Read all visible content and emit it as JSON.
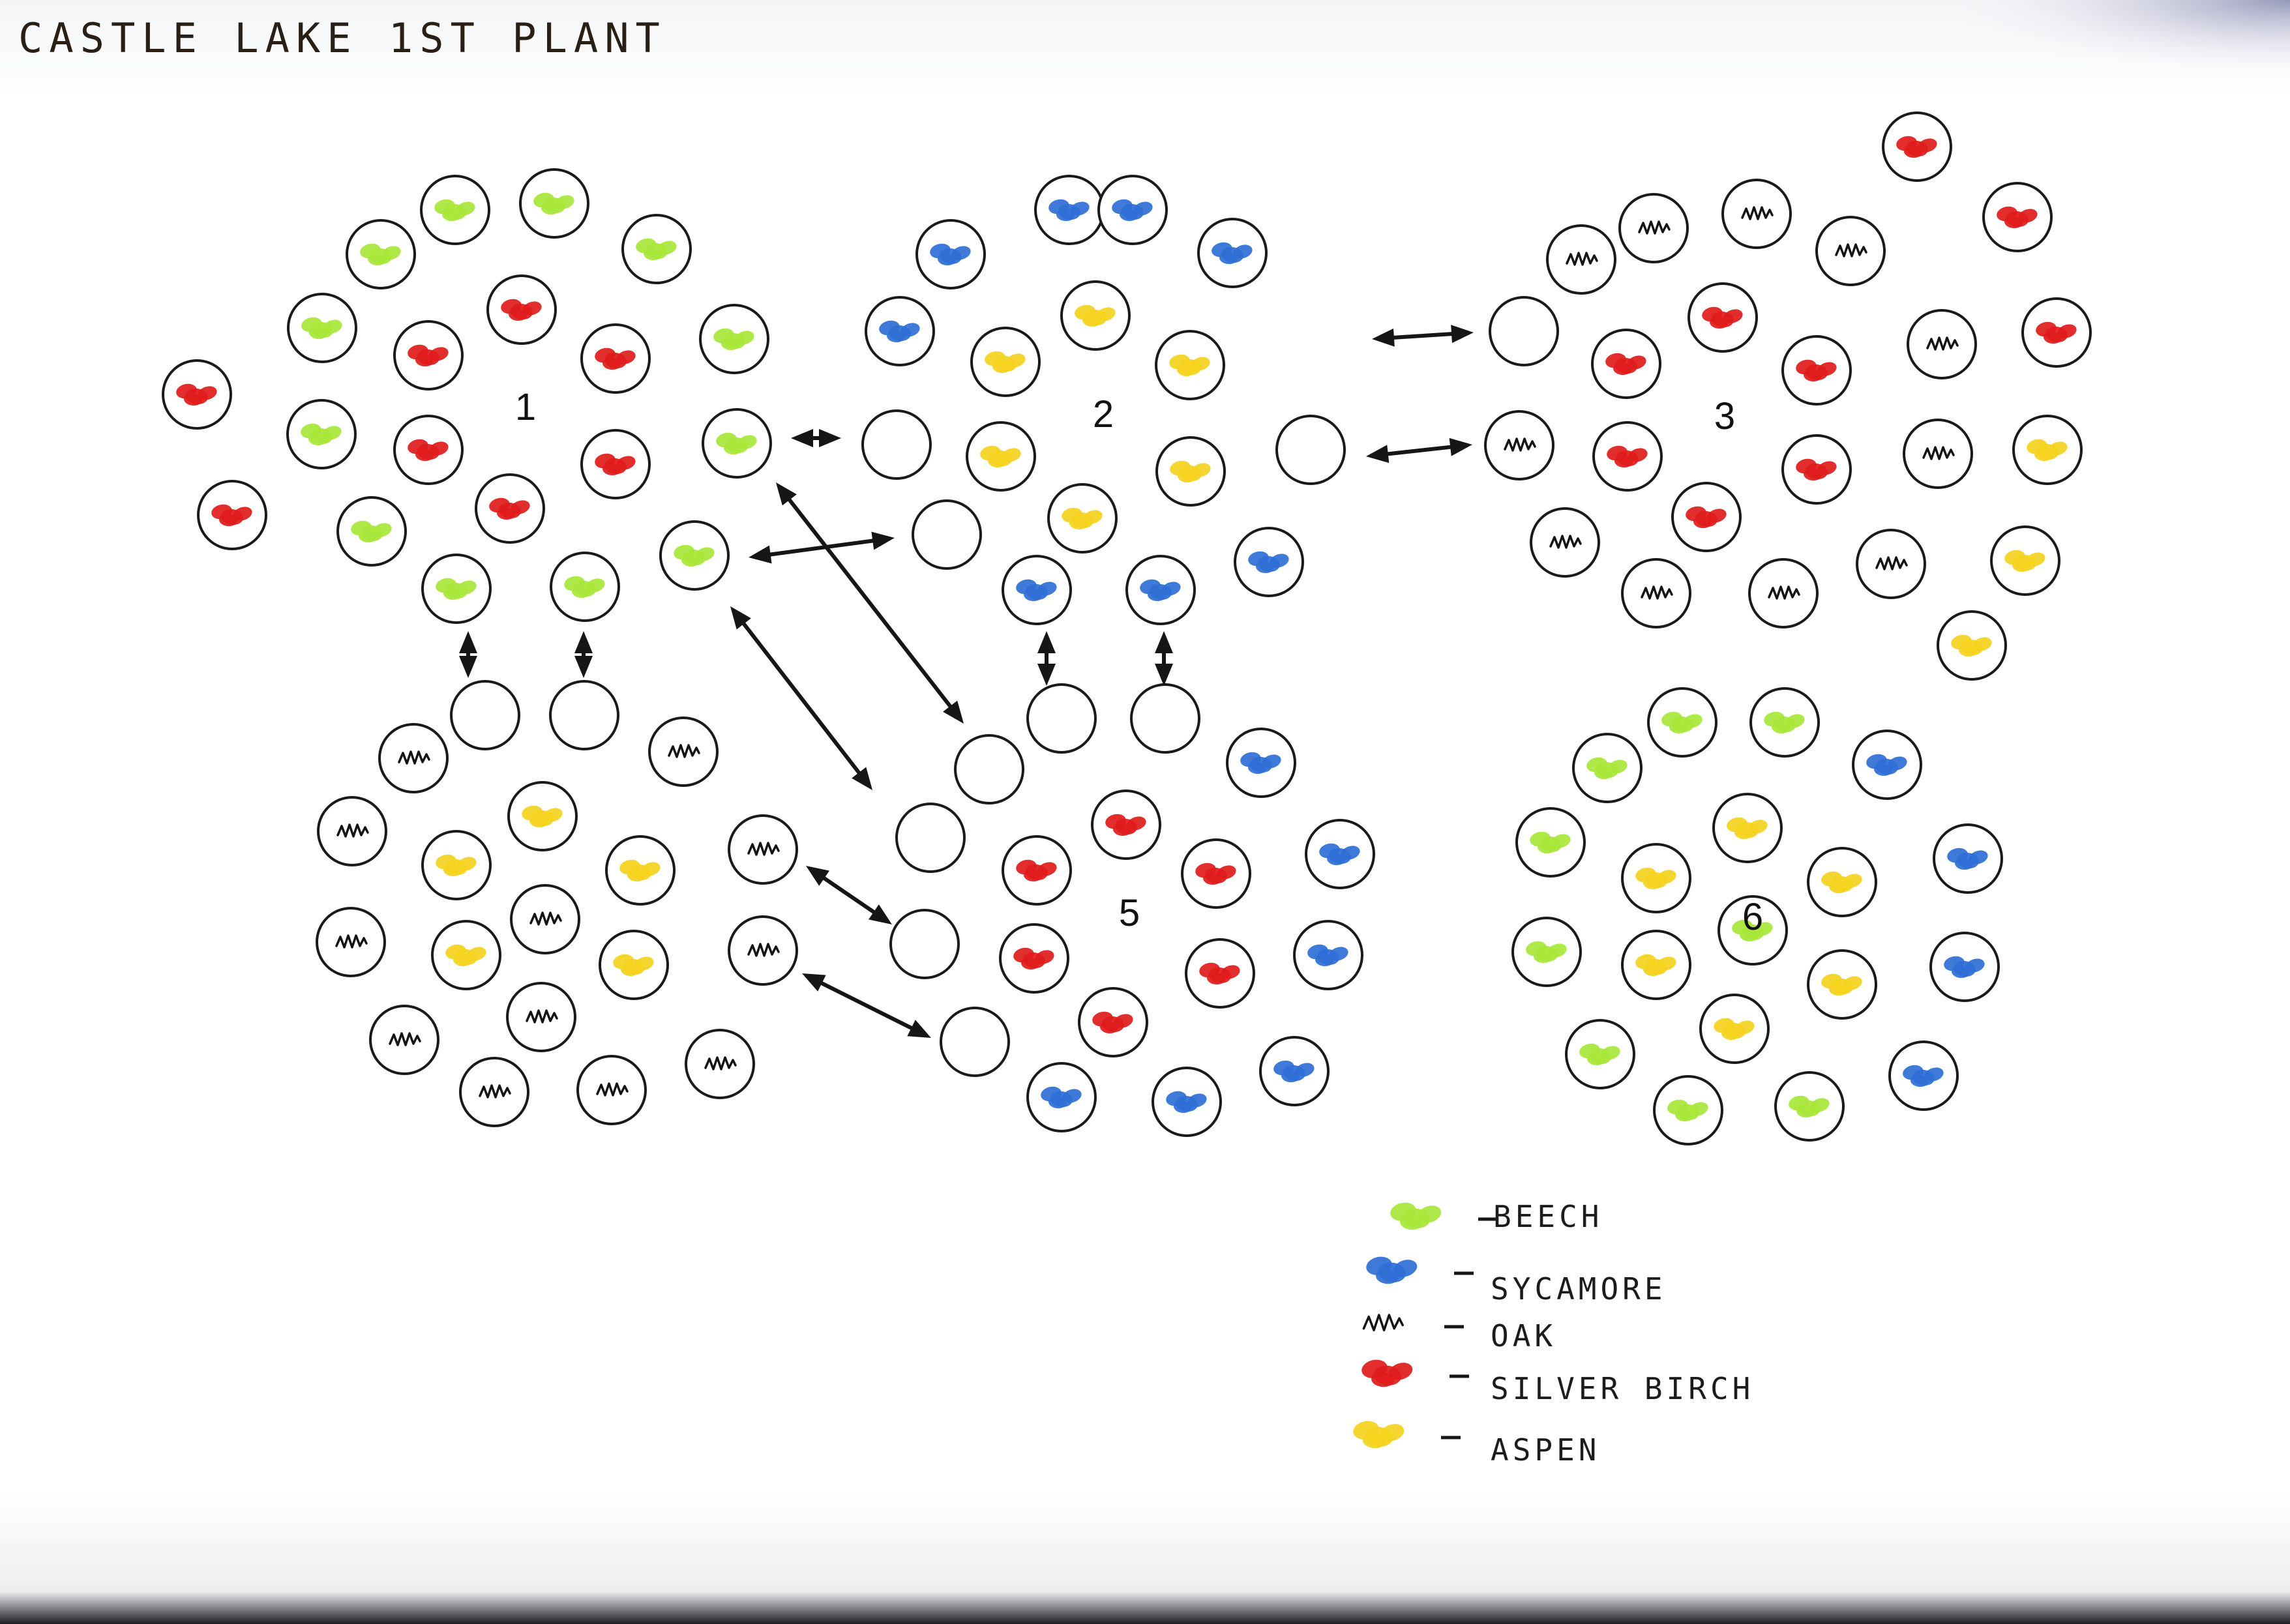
{
  "title": "CASTLE LAKE 1ST PLANT",
  "legend": [
    {
      "key": "beech",
      "label": "BEECH",
      "color": "#a8e63a"
    },
    {
      "key": "sycamore",
      "label": "SYCAMORE",
      "color": "#2f6fd6"
    },
    {
      "key": "oak",
      "label": "OAK",
      "color": "#141414"
    },
    {
      "key": "silver_birch",
      "label": "SILVER BIRCH",
      "color": "#e01b1b"
    },
    {
      "key": "aspen",
      "label": "ASPEN",
      "color": "#f4d21e"
    }
  ],
  "clusters": [
    {
      "label": "1"
    },
    {
      "label": "2"
    },
    {
      "label": "3"
    },
    {
      "label": "5"
    },
    {
      "label": "6"
    }
  ]
}
